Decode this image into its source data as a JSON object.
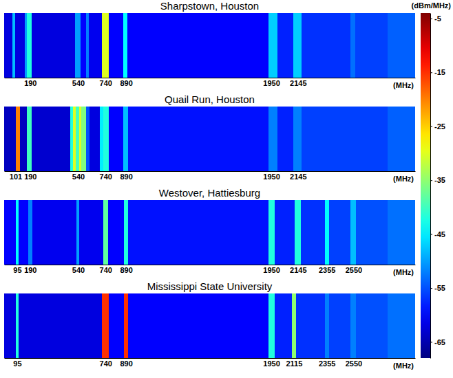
{
  "chart_data": [
    {
      "type": "heatmap",
      "title": "Sharpstown, Houston",
      "xlabel": "(MHz)",
      "xlim": [
        0,
        3000
      ],
      "xticks": [
        190,
        540,
        740,
        890,
        1950,
        2145
      ],
      "tick_labels": "x",
      "bins": [
        0,
        60,
        80,
        150,
        165,
        200,
        520,
        560,
        600,
        620,
        715,
        765,
        870,
        900,
        1930,
        1995,
        2110,
        2170,
        2530,
        2565,
        2800,
        3000
      ],
      "values": [
        -62,
        -48,
        -62,
        -50,
        -42,
        -62,
        -50,
        -60,
        -52,
        -61,
        -30,
        -60,
        -44,
        -60,
        -47,
        -58,
        -47,
        -57,
        -53,
        -56,
        -54
      ]
    },
    {
      "type": "heatmap",
      "title": "Quail Run, Houston",
      "xlabel": "(MHz)",
      "xlim": [
        0,
        3000
      ],
      "xticks": [
        101,
        190,
        540,
        740,
        890,
        1950,
        2145
      ],
      "tick_labels": "x",
      "bins": [
        0,
        85,
        115,
        165,
        200,
        480,
        505,
        525,
        550,
        565,
        600,
        625,
        700,
        725,
        765,
        870,
        905,
        1930,
        1995,
        2110,
        2170,
        2800,
        3000
      ],
      "values": [
        -64,
        -20,
        -64,
        -40,
        -63,
        -42,
        -30,
        -40,
        -30,
        -36,
        -55,
        -62,
        -45,
        -42,
        -60,
        -48,
        -59,
        -52,
        -58,
        -52,
        -56,
        -54
      ]
    },
    {
      "type": "heatmap",
      "title": "Westover, Hattiesburg",
      "xlabel": "(MHz)",
      "xlim": [
        0,
        3000
      ],
      "xticks": [
        95,
        190,
        540,
        740,
        890,
        1950,
        2145,
        2355,
        2550
      ],
      "tick_labels": "x",
      "bins": [
        0,
        85,
        105,
        175,
        205,
        530,
        550,
        725,
        760,
        875,
        905,
        1930,
        1975,
        2120,
        2165,
        2340,
        2370,
        2530,
        2570,
        2800,
        3000
      ],
      "values": [
        -60,
        -44,
        -60,
        -52,
        -61,
        -50,
        -61,
        -38,
        -60,
        -42,
        -59,
        -42,
        -58,
        -42,
        -57,
        -44,
        -56,
        -48,
        -55,
        -53
      ]
    },
    {
      "type": "heatmap",
      "title": "Mississippi State University",
      "xlabel": "(MHz)",
      "xlim": [
        0,
        3000
      ],
      "xticks": [
        95,
        740,
        890,
        1950,
        2115,
        2355,
        2550
      ],
      "tick_labels": "x",
      "bins": [
        0,
        85,
        105,
        715,
        765,
        875,
        905,
        1930,
        1975,
        2100,
        2130,
        2340,
        2370,
        2530,
        2570,
        2800,
        3000
      ],
      "values": [
        -62,
        -42,
        -62,
        -15,
        -60,
        -15,
        -60,
        -42,
        -58,
        -35,
        -57,
        -52,
        -56,
        -52,
        -55,
        -53
      ]
    }
  ],
  "colorbar": {
    "label": "(dBm/MHz)",
    "range": [
      -68,
      -4
    ],
    "ticks": [
      -5,
      -15,
      -25,
      -35,
      -45,
      -55,
      -65
    ]
  }
}
